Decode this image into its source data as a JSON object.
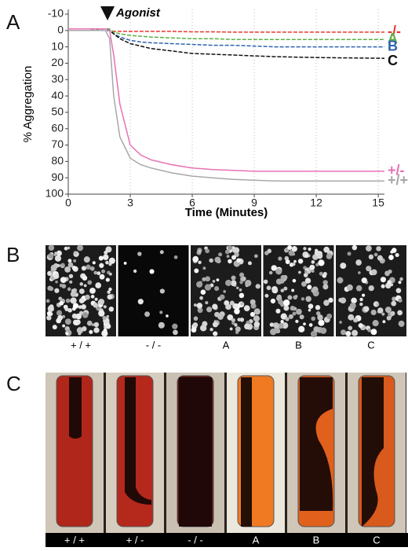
{
  "panel_labels": [
    "A",
    "B",
    "C"
  ],
  "chart_data": {
    "type": "line",
    "x_label": "Time (Minutes)",
    "y_label": "% Aggregation",
    "annotation": {
      "text": "Agonist",
      "x": 1.9
    },
    "xlim": [
      0,
      15.3
    ],
    "xticks": [
      0,
      3,
      6,
      9,
      12,
      15
    ],
    "ylim": [
      100,
      -10
    ],
    "yticks": [
      -10,
      0,
      10,
      20,
      30,
      40,
      50,
      60,
      70,
      80,
      90,
      100
    ],
    "grid": true,
    "x": [
      0,
      1,
      1.8,
      2,
      2.2,
      2.5,
      3,
      3.5,
      4,
      5,
      6,
      7,
      8,
      9,
      10,
      12,
      15.3
    ],
    "series": [
      {
        "name": "-/-",
        "color": "#e8362e",
        "values": [
          0,
          0,
          0,
          0,
          0.5,
          0.5,
          0.5,
          0.5,
          0.5,
          0.5,
          0.8,
          0.8,
          1,
          1,
          1,
          1,
          1
        ]
      },
      {
        "name": "A",
        "color": "#5cb146",
        "values": [
          0,
          0,
          -1,
          -1,
          1,
          2,
          3,
          3.5,
          4,
          4.5,
          5,
          5,
          5.5,
          5.5,
          5.5,
          5.5,
          5.5
        ]
      },
      {
        "name": "B",
        "color": "#2f63b0",
        "values": [
          0,
          0,
          0,
          0,
          2,
          4,
          6,
          7,
          7.5,
          8,
          8.5,
          9,
          9,
          9.5,
          10,
          10,
          10
        ]
      },
      {
        "name": "C",
        "color": "#111111",
        "values": [
          -1,
          -1,
          -1,
          0,
          2,
          5,
          8,
          9.5,
          11,
          12.5,
          14,
          14.5,
          15,
          15.5,
          16,
          16.5,
          17
        ]
      },
      {
        "name": "+/-",
        "color": "#e870b4",
        "values": [
          -1,
          -1,
          -1,
          0,
          15,
          45,
          70,
          76,
          79,
          82,
          84,
          85,
          85.5,
          86,
          86,
          86,
          86
        ]
      },
      {
        "name": "+/+",
        "color": "#a8a8a8",
        "values": [
          0,
          0,
          0,
          5,
          40,
          65,
          78,
          82,
          84,
          87,
          89,
          90,
          91,
          91.5,
          92,
          92,
          92
        ]
      }
    ]
  },
  "panel_b": {
    "labels": [
      "+ / +",
      "- / -",
      "A",
      "B",
      "C"
    ]
  },
  "panel_c": {
    "labels": [
      "+ / +",
      "+ / -",
      "- / -",
      "A",
      "B",
      "C"
    ]
  }
}
